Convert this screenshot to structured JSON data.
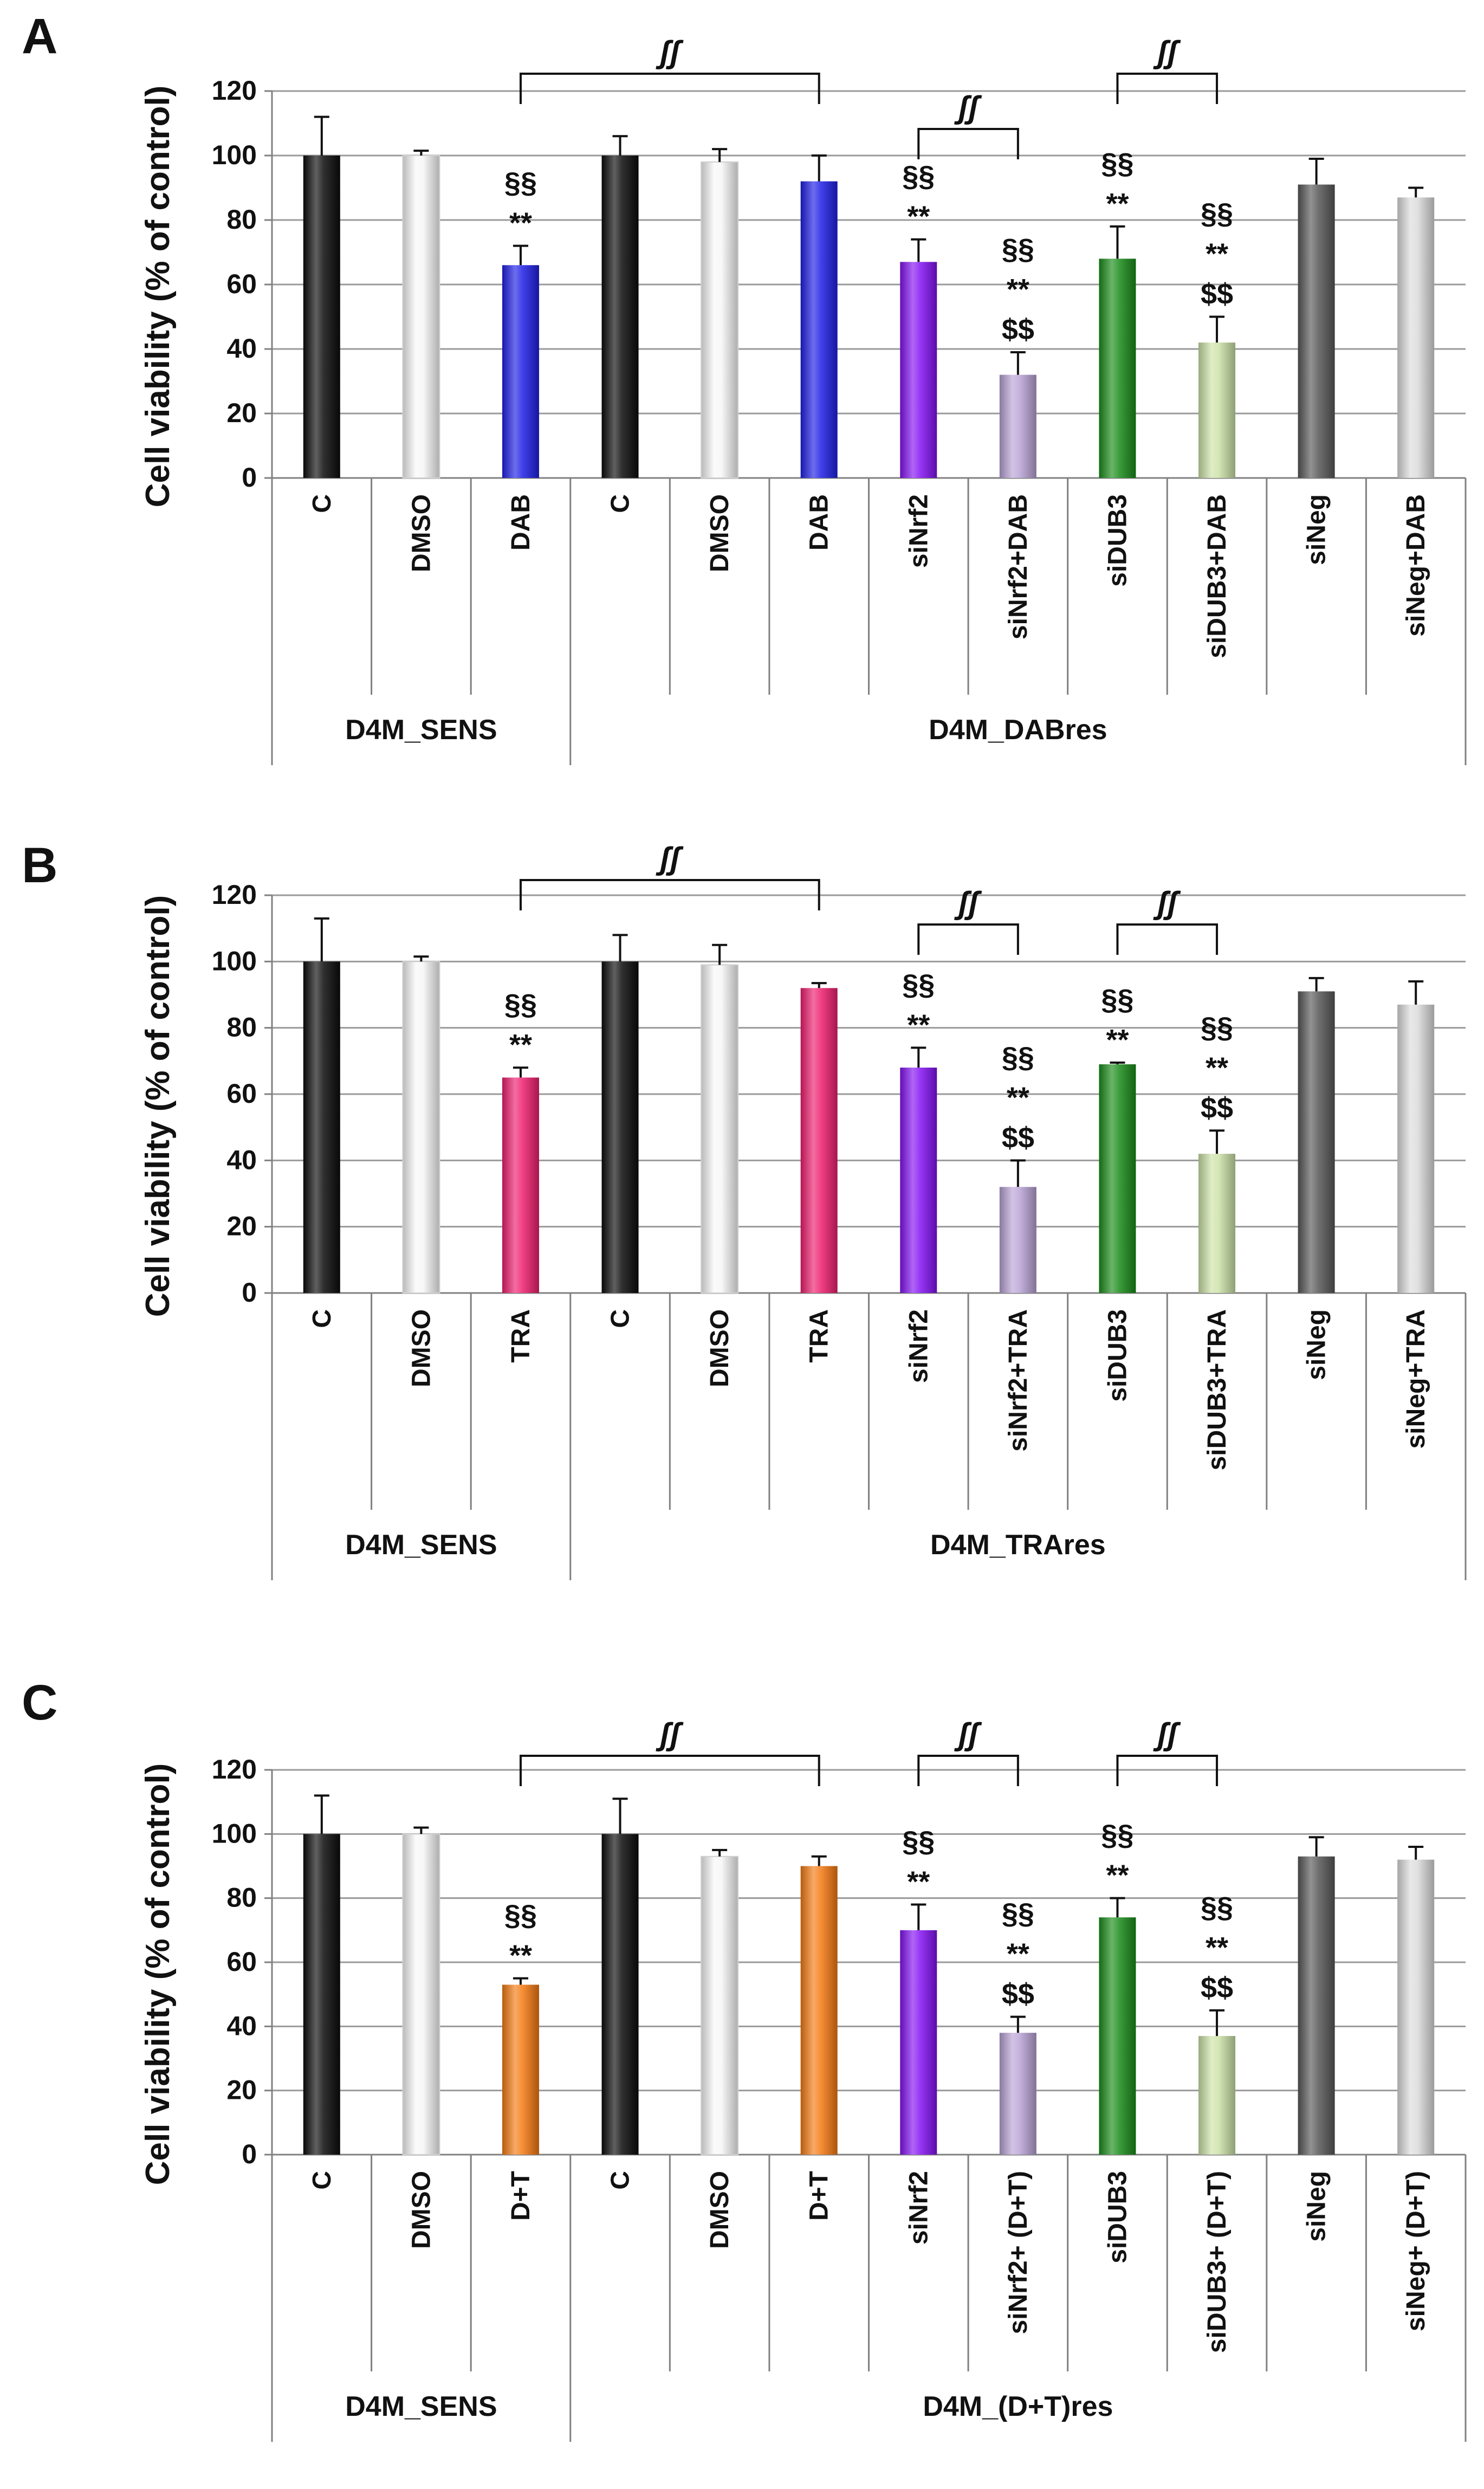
{
  "figure": {
    "panel_count": 3
  },
  "colors": {
    "black": "#0b0b0b",
    "white": "#f7f7f7",
    "blue": "#1f1fe6",
    "pink": "#ee1f6e",
    "orange": "#f47a12",
    "purple": "#8412f2",
    "lavender": "#b9a3d6",
    "green": "#1a8c1a",
    "lightgreen": "#cce2a8",
    "darkgray": "#585858",
    "lightgray": "#dcdcdc",
    "axis": "#808080",
    "grid": "#9a9a9a",
    "text": "#111111"
  },
  "chart_data": [
    {
      "type": "bar",
      "panel_label": "A",
      "ylabel": "Cell viability (%  of control)",
      "ylim": [
        0,
        120
      ],
      "yticks": [
        "0",
        "20",
        "40",
        "60",
        "80",
        "100",
        "120"
      ],
      "grid": true,
      "categories": [
        "C",
        "DMSO",
        "DAB",
        "C",
        "DMSO",
        "DAB",
        "siNrf2",
        "siNrf2+DAB",
        "siDUB3",
        "siDUB3+DAB",
        "siNeg",
        "siNeg+DAB"
      ],
      "values": [
        100,
        100,
        66,
        100,
        98,
        92,
        67,
        32,
        68,
        42,
        91,
        87
      ],
      "errors": [
        12,
        1.5,
        6,
        6,
        4,
        8,
        7,
        7,
        10,
        8,
        8,
        3
      ],
      "bar_colors": [
        "black",
        "white",
        "blue",
        "black",
        "white",
        "blue",
        "purple",
        "lavender",
        "green",
        "lightgreen",
        "darkgray",
        "lightgray"
      ],
      "groups": [
        {
          "label": "D4M_SENS",
          "start": 0,
          "end": 2
        },
        {
          "label": "D4M_DABres",
          "start": 3,
          "end": 11
        }
      ],
      "annotations": [
        {
          "bar": 2,
          "lines": [
            "§§",
            "**"
          ]
        },
        {
          "bar": 6,
          "lines": [
            "§§",
            "**"
          ]
        },
        {
          "bar": 7,
          "lines": [
            "§§",
            "**",
            "$$"
          ]
        },
        {
          "bar": 8,
          "lines": [
            "§§",
            "**"
          ]
        },
        {
          "bar": 9,
          "lines": [
            "§§",
            "**",
            "$$"
          ]
        }
      ],
      "brackets": [
        {
          "from": 2,
          "to": 5,
          "label": "ʃʃ",
          "level": 3
        },
        {
          "from": 6,
          "to": 7,
          "label": "ʃʃ",
          "level": 2
        },
        {
          "from": 8,
          "to": 9,
          "label": "ʃʃ",
          "level": 3
        }
      ]
    },
    {
      "type": "bar",
      "panel_label": "B",
      "ylabel": "Cell viability (%  of control)",
      "ylim": [
        0,
        120
      ],
      "yticks": [
        "0",
        "20",
        "40",
        "60",
        "80",
        "100",
        "120"
      ],
      "grid": true,
      "categories": [
        "C",
        "DMSO",
        "TRA",
        "C",
        "DMSO",
        "TRA",
        "siNrf2",
        "siNrf2+TRA",
        "siDUB3",
        "siDUB3+TRA",
        "siNeg",
        "siNeg+TRA"
      ],
      "values": [
        100,
        100,
        65,
        100,
        99,
        92,
        68,
        32,
        69,
        42,
        91,
        87
      ],
      "errors": [
        13,
        1.5,
        3,
        8,
        6,
        1.5,
        6,
        8,
        0.5,
        7,
        4,
        7
      ],
      "bar_colors": [
        "black",
        "white",
        "pink",
        "black",
        "white",
        "pink",
        "purple",
        "lavender",
        "green",
        "lightgreen",
        "darkgray",
        "lightgray"
      ],
      "groups": [
        {
          "label": "D4M_SENS",
          "start": 0,
          "end": 2
        },
        {
          "label": "D4M_TRAres",
          "start": 3,
          "end": 11
        }
      ],
      "annotations": [
        {
          "bar": 2,
          "lines": [
            "§§",
            "**"
          ]
        },
        {
          "bar": 6,
          "lines": [
            "§§",
            "**"
          ]
        },
        {
          "bar": 7,
          "lines": [
            "§§",
            "**",
            "$$"
          ]
        },
        {
          "bar": 8,
          "lines": [
            "§§",
            "**"
          ]
        },
        {
          "bar": 9,
          "lines": [
            "§§",
            "**",
            "$$"
          ]
        }
      ],
      "brackets": [
        {
          "from": 2,
          "to": 5,
          "label": "ʃʃ",
          "level": 3
        },
        {
          "from": 6,
          "to": 7,
          "label": "ʃʃ",
          "level": 2
        },
        {
          "from": 8,
          "to": 9,
          "label": "ʃʃ",
          "level": 2
        }
      ]
    },
    {
      "type": "bar",
      "panel_label": "C",
      "ylabel": "Cell viability (%  of control)",
      "ylim": [
        0,
        120
      ],
      "yticks": [
        "0",
        "20",
        "40",
        "60",
        "80",
        "100",
        "120"
      ],
      "grid": true,
      "categories": [
        "C",
        "DMSO",
        "D+T",
        "C",
        "DMSO",
        "D+T",
        "siNrf2",
        "siNrf2+ (D+T)",
        "siDUB3",
        "siDUB3+ (D+T)",
        "siNeg",
        "siNeg+ (D+T)"
      ],
      "values": [
        100,
        100,
        53,
        100,
        93,
        90,
        70,
        38,
        74,
        37,
        93,
        92
      ],
      "errors": [
        12,
        2,
        2,
        11,
        2,
        3,
        8,
        5,
        6,
        8,
        6,
        4
      ],
      "bar_colors": [
        "black",
        "white",
        "orange",
        "black",
        "white",
        "orange",
        "purple",
        "lavender",
        "green",
        "lightgreen",
        "darkgray",
        "lightgray"
      ],
      "groups": [
        {
          "label": "D4M_SENS",
          "start": 0,
          "end": 2
        },
        {
          "label": "D4M_(D+T)res",
          "start": 3,
          "end": 11
        }
      ],
      "annotations": [
        {
          "bar": 2,
          "lines": [
            "§§",
            "**"
          ]
        },
        {
          "bar": 6,
          "lines": [
            "§§",
            "**"
          ]
        },
        {
          "bar": 7,
          "lines": [
            "§§",
            "**",
            "$$"
          ]
        },
        {
          "bar": 8,
          "lines": [
            "§§",
            "**"
          ]
        },
        {
          "bar": 9,
          "lines": [
            "§§",
            "**",
            "$$"
          ]
        }
      ],
      "brackets": [
        {
          "from": 2,
          "to": 5,
          "label": "ʃʃ",
          "level": 2
        },
        {
          "from": 6,
          "to": 7,
          "label": "ʃʃ",
          "level": 2
        },
        {
          "from": 8,
          "to": 9,
          "label": "ʃʃ",
          "level": 2
        }
      ]
    }
  ]
}
